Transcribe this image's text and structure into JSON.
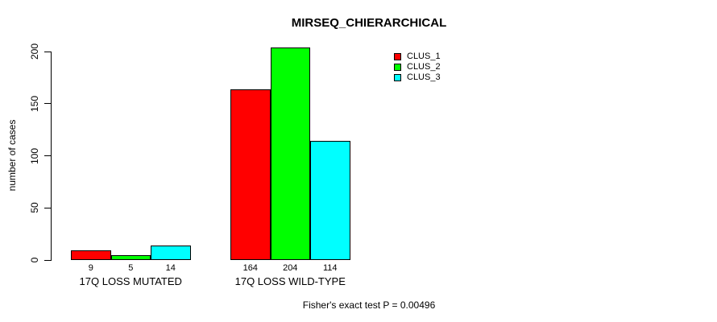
{
  "title": "MIRSEQ_CHIERARCHICAL",
  "footer": "Fisher's exact test P = 0.00496",
  "chart_data": {
    "type": "bar",
    "grouped": true,
    "title": "MIRSEQ_CHIERARCHICAL",
    "xlabel": "",
    "ylabel": "number of cases",
    "categories": [
      "17Q LOSS MUTATED",
      "17Q LOSS WILD-TYPE"
    ],
    "series": [
      {
        "name": "CLUS_1",
        "color": "#ff0000",
        "values": [
          9,
          164
        ]
      },
      {
        "name": "CLUS_2",
        "color": "#00ff00",
        "values": [
          5,
          204
        ]
      },
      {
        "name": "CLUS_3",
        "color": "#00ffff",
        "values": [
          14,
          114
        ]
      }
    ],
    "bar_value_labels": [
      [
        9,
        5,
        14
      ],
      [
        164,
        204,
        114
      ]
    ],
    "yticks": [
      0,
      50,
      100,
      150,
      200
    ],
    "ylim": [
      0,
      200
    ],
    "grid": false,
    "legend_position": "top-right",
    "annotation": "Fisher's exact test P = 0.00496"
  }
}
